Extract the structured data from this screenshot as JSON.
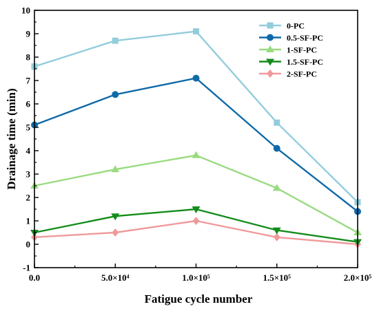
{
  "chart_data": {
    "type": "line",
    "xlabel": "Fatigue cycle number",
    "ylabel": "Drainage time (min)",
    "xlim": [
      0,
      200000
    ],
    "ylim": [
      -1,
      10
    ],
    "x": [
      0,
      50000,
      100000,
      150000,
      200000
    ],
    "x_tick_labels": [
      "0.0",
      "5.0×10⁴",
      "1.0×10⁵",
      "1.5×10⁵",
      "2.0×10⁵"
    ],
    "y_ticks": [
      -1,
      0,
      1,
      2,
      3,
      4,
      5,
      6,
      7,
      8,
      9,
      10
    ],
    "y_tick_labels": [
      "-1",
      "0",
      "1",
      "2",
      "3",
      "4",
      "5",
      "6",
      "7",
      "8",
      "9",
      "10"
    ],
    "grid": false,
    "legend_position": "top-right",
    "series": [
      {
        "name": "0-PC",
        "values": [
          7.6,
          8.7,
          9.1,
          5.2,
          1.8
        ],
        "color": "#92cddc",
        "marker": "square"
      },
      {
        "name": "0.5-SF-PC",
        "values": [
          5.1,
          6.4,
          7.1,
          4.1,
          1.4
        ],
        "color": "#0f6aa8",
        "marker": "circle"
      },
      {
        "name": "1-SF-PC",
        "values": [
          2.5,
          3.2,
          3.8,
          2.4,
          0.5
        ],
        "color": "#99db7f",
        "marker": "triangle-up"
      },
      {
        "name": "1.5-SF-PC",
        "values": [
          0.5,
          1.2,
          1.5,
          0.6,
          0.1
        ],
        "color": "#138c1a",
        "marker": "triangle-down"
      },
      {
        "name": "2-SF-PC",
        "values": [
          0.3,
          0.5,
          1.0,
          0.3,
          0.0
        ],
        "color": "#f0999b",
        "marker": "diamond"
      }
    ]
  }
}
